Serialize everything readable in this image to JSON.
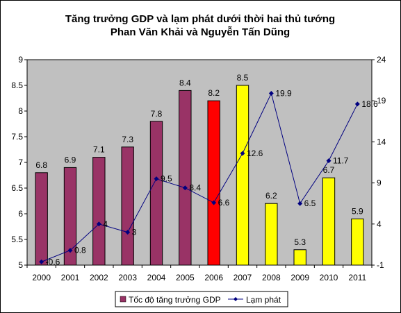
{
  "chart_data": {
    "type": "bar+line",
    "title_lines": [
      "Tăng trưởng GDP và lạm phát dưới thời hai thủ tướng",
      "Phan Văn Khải và Nguyễn Tấn Dũng"
    ],
    "categories": [
      "2000",
      "2001",
      "2002",
      "2003",
      "2004",
      "2005",
      "2006",
      "2007",
      "2008",
      "2009",
      "2010",
      "2011"
    ],
    "series": [
      {
        "name": "Tốc độ tăng trưởng GDP",
        "kind": "bar",
        "axis": "left",
        "values": [
          6.8,
          6.9,
          7.1,
          7.3,
          7.8,
          8.4,
          8.2,
          8.5,
          6.2,
          5.3,
          6.7,
          5.9
        ],
        "labels": [
          "6.8",
          "6.9",
          "7.1",
          "7.3",
          "7.8",
          "8.4",
          "8.2",
          "8.5",
          "6.2",
          "5.3",
          "6.7",
          "5.9"
        ],
        "colors": [
          "#993366",
          "#993366",
          "#993366",
          "#993366",
          "#993366",
          "#993366",
          "#ff0000",
          "#ffff00",
          "#ffff00",
          "#ffff00",
          "#ffff00",
          "#ffff00"
        ]
      },
      {
        "name": "Lạm phát",
        "kind": "line",
        "axis": "right",
        "values": [
          -0.6,
          0.8,
          4,
          3,
          9.5,
          8.4,
          6.6,
          12.6,
          19.9,
          6.5,
          11.7,
          18.6
        ],
        "labels": [
          "-0.6",
          "0.8",
          "4",
          "3",
          "9.5",
          "8.4",
          "6.6",
          "12.6",
          "19.9",
          "6.5",
          "11.7",
          "18.6"
        ],
        "color": "#000080"
      }
    ],
    "y_left": {
      "min": 5,
      "max": 9,
      "ticks": [
        "5",
        "5.5",
        "6",
        "6.5",
        "7",
        "7.5",
        "8",
        "8.5",
        "9"
      ]
    },
    "y_right": {
      "min": -1,
      "max": 24,
      "ticks": [
        "-1",
        "4",
        "9",
        "14",
        "19",
        "24"
      ]
    },
    "grid": false,
    "legend": "bottom",
    "colors": {
      "plot_background": "#c0c0c0",
      "bar_default": "#993366",
      "line": "#000080"
    }
  }
}
